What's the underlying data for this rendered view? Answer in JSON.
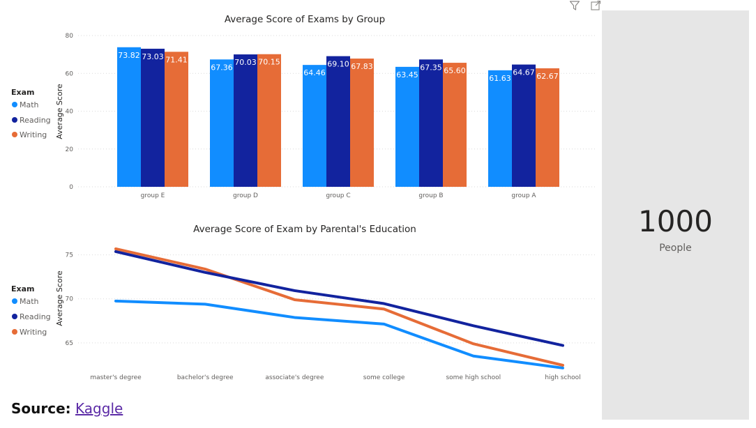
{
  "header_icons": [
    "filter-icon",
    "focus-mode-icon"
  ],
  "colors": {
    "Math": "#118dff",
    "Reading": "#12239e",
    "Writing": "#e66c37"
  },
  "chart_data": [
    {
      "type": "bar",
      "title": "Average Score of Exams by Group",
      "xlabel": "",
      "ylabel": "Average Score",
      "legend_title": "Exam",
      "legend_position": "left",
      "categories": [
        "group E",
        "group D",
        "group C",
        "group B",
        "group A"
      ],
      "series": [
        {
          "name": "Math",
          "values": [
            73.82,
            67.36,
            64.46,
            63.45,
            61.63
          ]
        },
        {
          "name": "Reading",
          "values": [
            73.03,
            70.03,
            69.1,
            67.35,
            64.67
          ]
        },
        {
          "name": "Writing",
          "values": [
            71.41,
            70.15,
            67.83,
            65.6,
            62.67
          ]
        }
      ],
      "data_labels": [
        [
          "73.82",
          "67.36",
          "64.46",
          "63.45",
          "61.63"
        ],
        [
          "73.03",
          "70.03",
          "69.10",
          "67.35",
          "64.67"
        ],
        [
          "71.41",
          "70.15",
          "67.83",
          "65.60",
          "62.67"
        ]
      ],
      "ylim": [
        0,
        80
      ],
      "yticks": [
        "0",
        "20",
        "40",
        "60",
        "80"
      ],
      "grid": true
    },
    {
      "type": "line",
      "title": "Average Score of Exam by Parental's Education",
      "xlabel": "",
      "ylabel": "Average Score",
      "legend_title": "Exam",
      "legend_position": "left",
      "categories": [
        "master's degree",
        "bachelor's degree",
        "associate's degree",
        "some college",
        "some high school",
        "high school"
      ],
      "series": [
        {
          "name": "Math",
          "values": [
            69.75,
            69.39,
            67.88,
            67.13,
            63.5,
            62.14
          ]
        },
        {
          "name": "Reading",
          "values": [
            75.37,
            73.0,
            70.93,
            69.46,
            66.94,
            64.7
          ]
        },
        {
          "name": "Writing",
          "values": [
            75.68,
            73.38,
            69.9,
            68.84,
            64.89,
            62.45
          ]
        }
      ],
      "ylim": [
        61.5,
        77.5
      ],
      "yticks": [
        "65",
        "70",
        "75"
      ],
      "grid": true
    }
  ],
  "card": {
    "value": "1000",
    "label": "People"
  },
  "source": {
    "label": "Source:",
    "link_text": "Kaggle"
  }
}
